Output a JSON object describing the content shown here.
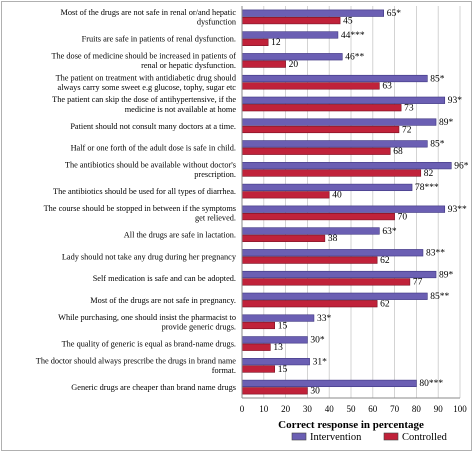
{
  "chart_data": {
    "type": "bar",
    "orientation": "horizontal",
    "xlabel": "Correct response in percentage",
    "xlim": [
      0,
      100
    ],
    "xticks": [
      0,
      10,
      20,
      30,
      40,
      50,
      60,
      70,
      80,
      90,
      100
    ],
    "grid": true,
    "legend_position": "bottom-center",
    "categories": [
      [
        "Most of the drugs are not safe in renal or/and hepatic",
        "dysfunction"
      ],
      [
        "Fruits are safe in patients of renal dysfunction."
      ],
      [
        "The dose of medicine should be increased in patients of",
        "renal or hepatic dysfunction."
      ],
      [
        "The patient on treatment with antidiabetic drug should",
        "always carry some sweet e.g glucose, tophy, sugar etc"
      ],
      [
        "The patient can skip the dose of antihypertensive, if the",
        "medicine is not available at home"
      ],
      [
        "Patient should not consult many doctors at a time."
      ],
      [
        "Half or one forth of the adult dose is safe in child."
      ],
      [
        "The antibiotics should be available without doctor's",
        "prescription."
      ],
      [
        "The antibiotics should be used for all types of diarrhea."
      ],
      [
        "The course should be stopped in between if the symptoms",
        "get relieved."
      ],
      [
        "All the drugs are safe in lactation."
      ],
      [
        "Lady should not take any drug during her pregnancy"
      ],
      [
        "Self medication is safe and can be adopted."
      ],
      [
        "Most of the drugs are not safe in pregnancy."
      ],
      [
        "While purchasing, one should insist the pharmacist to",
        "provide generic drugs."
      ],
      [
        "The quality of generic is equal as brand-name drugs."
      ],
      [
        "The doctor should always prescribe the drugs in brand name",
        "format."
      ],
      [
        "Generic drugs are cheaper than brand name drugs"
      ]
    ],
    "series": [
      {
        "name": "Intervention",
        "color": "#6b5fb3",
        "values": [
          65,
          44,
          46,
          85,
          93,
          89,
          85,
          96,
          78,
          93,
          63,
          83,
          89,
          85,
          33,
          30,
          31,
          80
        ],
        "labels": [
          "65*",
          "44***",
          "46**",
          "85*",
          "93*",
          "89*",
          "85*",
          "96*",
          "78***",
          "93**",
          "63*",
          "83**",
          "89*",
          "85**",
          "33*",
          "30*",
          "31*",
          "80***"
        ]
      },
      {
        "name": "Controlled",
        "color": "#c0223a",
        "values": [
          45,
          12,
          20,
          63,
          73,
          72,
          68,
          82,
          40,
          70,
          38,
          62,
          77,
          62,
          15,
          13,
          15,
          30
        ],
        "labels": [
          "45",
          "12",
          "20",
          "63",
          "73",
          "72",
          "68",
          "82",
          "40",
          "70",
          "38",
          "62",
          "77",
          "62",
          "15",
          "13",
          "15",
          "30"
        ]
      }
    ]
  }
}
